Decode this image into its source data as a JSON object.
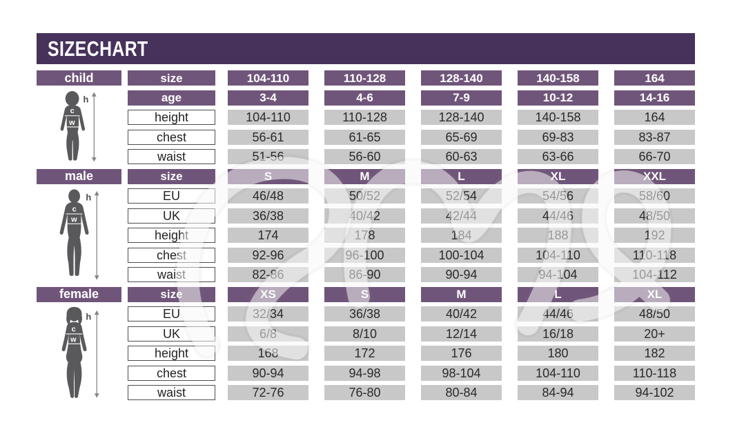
{
  "title": "SIZE CHART",
  "colors": {
    "title_bar": "#46325a",
    "header_purple": "#70557a",
    "value_gray": "#c8c8c8",
    "label_border": "#4d4d4d",
    "silhouette": "#59595b"
  },
  "figure_labels": {
    "height": "h",
    "chest": "c",
    "waist": "w"
  },
  "sections": [
    {
      "gender": "child",
      "header_rows": [
        {
          "label": "size",
          "values": [
            "104-110",
            "110-128",
            "128-140",
            "140-158",
            "164"
          ]
        },
        {
          "label": "age",
          "values": [
            "3-4",
            "4-6",
            "7-9",
            "10-12",
            "14-16"
          ]
        }
      ],
      "data_rows": [
        {
          "label": "height",
          "values": [
            "104-110",
            "110-128",
            "128-140",
            "140-158",
            "164"
          ]
        },
        {
          "label": "chest",
          "values": [
            "56-61",
            "61-65",
            "65-69",
            "69-83",
            "83-87"
          ]
        },
        {
          "label": "waist",
          "values": [
            "51-56",
            "56-60",
            "60-63",
            "63-66",
            "66-70"
          ]
        }
      ]
    },
    {
      "gender": "male",
      "header_rows": [
        {
          "label": "size",
          "values": [
            "S",
            "M",
            "L",
            "XL",
            "XXL"
          ]
        }
      ],
      "data_rows": [
        {
          "label": "EU",
          "values": [
            "46/48",
            "50/52",
            "52/54",
            "54/56",
            "58/60"
          ]
        },
        {
          "label": "UK",
          "values": [
            "36/38",
            "40/42",
            "42/44",
            "44/46",
            "48/50"
          ]
        },
        {
          "label": "height",
          "values": [
            "174",
            "178",
            "184",
            "188",
            "192"
          ]
        },
        {
          "label": "chest",
          "values": [
            "92-96",
            "96-100",
            "100-104",
            "104-110",
            "110-118"
          ]
        },
        {
          "label": "waist",
          "values": [
            "82-86",
            "86-90",
            "90-94",
            "94-104",
            "104-112"
          ]
        }
      ]
    },
    {
      "gender": "female",
      "header_rows": [
        {
          "label": "size",
          "values": [
            "XS",
            "S",
            "M",
            "L",
            "XL"
          ]
        }
      ],
      "data_rows": [
        {
          "label": "EU",
          "values": [
            "32/34",
            "36/38",
            "40/42",
            "44/46",
            "48/50"
          ]
        },
        {
          "label": "UK",
          "values": [
            "6/8",
            "8/10",
            "12/14",
            "16/18",
            "20+"
          ]
        },
        {
          "label": "height",
          "values": [
            "168",
            "172",
            "176",
            "180",
            "182"
          ]
        },
        {
          "label": "chest",
          "values": [
            "90-94",
            "94-98",
            "98-104",
            "104-110",
            "110-118"
          ]
        },
        {
          "label": "waist",
          "values": [
            "72-76",
            "76-80",
            "80-84",
            "84-94",
            "94-102"
          ]
        }
      ]
    }
  ],
  "chart_data": [
    {
      "type": "table",
      "title": "child",
      "columns": [
        "104-110",
        "110-128",
        "128-140",
        "140-158",
        "164"
      ],
      "rows": [
        [
          "age",
          "3-4",
          "4-6",
          "7-9",
          "10-12",
          "14-16"
        ],
        [
          "height",
          "104-110",
          "110-128",
          "128-140",
          "140-158",
          "164"
        ],
        [
          "chest",
          "56-61",
          "61-65",
          "65-69",
          "69-83",
          "83-87"
        ],
        [
          "waist",
          "51-56",
          "56-60",
          "60-63",
          "63-66",
          "66-70"
        ]
      ]
    },
    {
      "type": "table",
      "title": "male",
      "columns": [
        "S",
        "M",
        "L",
        "XL",
        "XXL"
      ],
      "rows": [
        [
          "EU",
          "46/48",
          "50/52",
          "52/54",
          "54/56",
          "58/60"
        ],
        [
          "UK",
          "36/38",
          "40/42",
          "42/44",
          "44/46",
          "48/50"
        ],
        [
          "height",
          "174",
          "178",
          "184",
          "188",
          "192"
        ],
        [
          "chest",
          "92-96",
          "96-100",
          "100-104",
          "104-110",
          "110-118"
        ],
        [
          "waist",
          "82-86",
          "86-90",
          "90-94",
          "94-104",
          "104-112"
        ]
      ]
    },
    {
      "type": "table",
      "title": "female",
      "columns": [
        "XS",
        "S",
        "M",
        "L",
        "XL"
      ],
      "rows": [
        [
          "EU",
          "32/34",
          "36/38",
          "40/42",
          "44/46",
          "48/50"
        ],
        [
          "UK",
          "6/8",
          "8/10",
          "12/14",
          "16/18",
          "20+"
        ],
        [
          "height",
          "168",
          "172",
          "176",
          "180",
          "182"
        ],
        [
          "chest",
          "90-94",
          "94-98",
          "98-104",
          "104-110",
          "110-118"
        ],
        [
          "waist",
          "72-76",
          "76-80",
          "80-84",
          "84-94",
          "94-102"
        ]
      ]
    }
  ]
}
